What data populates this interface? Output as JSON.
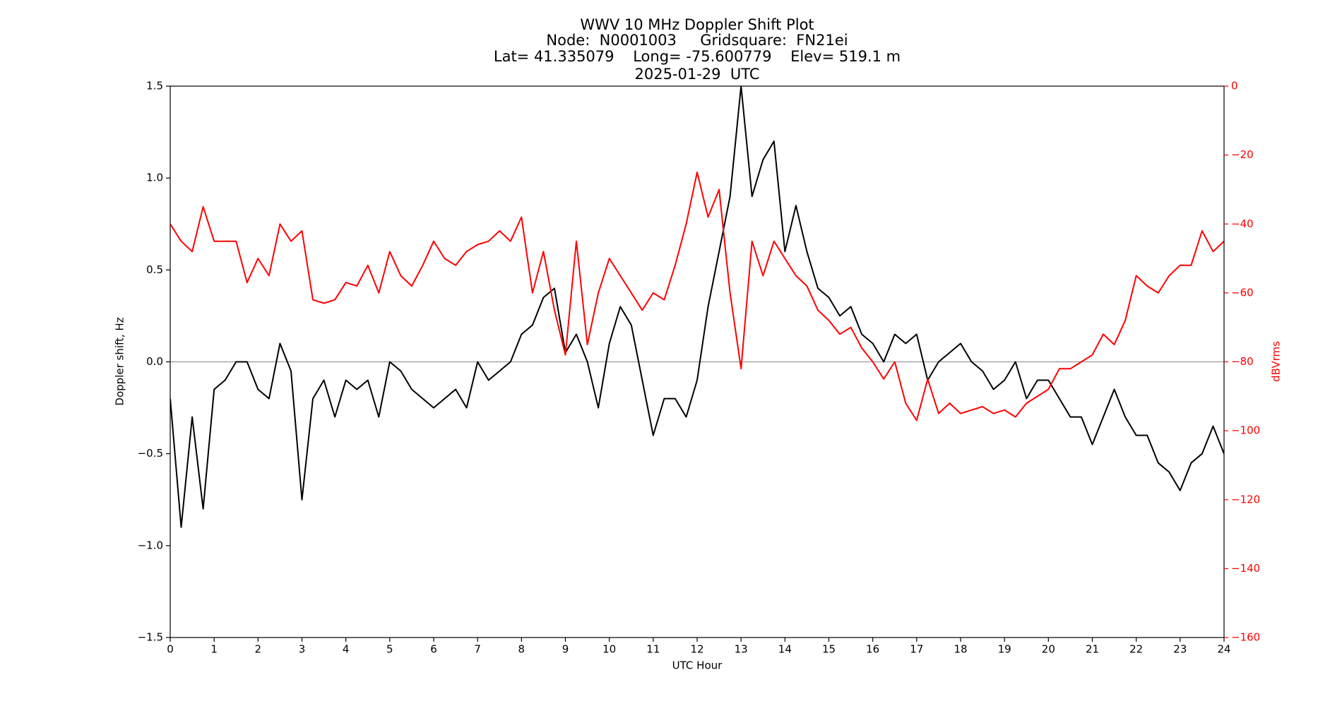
{
  "chart_data": {
    "type": "line",
    "title": [
      "WWV 10 MHz Doppler Shift Plot",
      "Node:  N0001003     Gridsquare:  FN21ei",
      "Lat= 41.335079    Long= -75.600779    Elev= 519.1 m",
      "2025-01-29  UTC"
    ],
    "x_label": "UTC Hour",
    "y_label": "Doppler shift, Hz",
    "y2_label": "dBVrms",
    "y2_color": "#ff0000",
    "x": [
      0,
      0.25,
      0.5,
      0.75,
      1,
      1.25,
      1.5,
      1.75,
      2,
      2.25,
      2.5,
      2.75,
      3,
      3.25,
      3.5,
      3.75,
      4,
      4.25,
      4.5,
      4.75,
      5,
      5.25,
      5.5,
      5.75,
      6,
      6.25,
      6.5,
      6.75,
      7,
      7.25,
      7.5,
      7.75,
      8,
      8.25,
      8.5,
      8.75,
      9,
      9.25,
      9.5,
      9.75,
      10,
      10.25,
      10.5,
      10.75,
      11,
      11.25,
      11.5,
      11.75,
      12,
      12.25,
      12.5,
      12.75,
      13,
      13.25,
      13.5,
      13.75,
      14,
      14.25,
      14.5,
      14.75,
      15,
      15.25,
      15.5,
      15.75,
      16,
      16.25,
      16.5,
      16.75,
      17,
      17.25,
      17.5,
      17.75,
      18,
      18.25,
      18.5,
      18.75,
      19,
      19.25,
      19.5,
      19.75,
      20,
      20.25,
      20.5,
      20.75,
      21,
      21.25,
      21.5,
      21.75,
      22,
      22.25,
      22.5,
      22.75,
      23,
      23.25,
      23.5,
      23.75,
      24
    ],
    "series": [
      {
        "name": "Doppler shift",
        "color": "#000000",
        "values": [
          -0.2,
          -0.9,
          -0.3,
          -0.8,
          -0.15,
          -0.1,
          0.0,
          0.0,
          -0.15,
          -0.2,
          0.1,
          -0.05,
          -0.75,
          -0.2,
          -0.1,
          -0.3,
          -0.1,
          -0.15,
          -0.1,
          -0.3,
          0.0,
          -0.05,
          -0.15,
          -0.2,
          -0.25,
          -0.2,
          -0.15,
          -0.25,
          0.0,
          -0.1,
          -0.05,
          0.0,
          0.15,
          0.2,
          0.35,
          0.4,
          0.05,
          0.15,
          0.0,
          -0.25,
          0.1,
          0.3,
          0.2,
          -0.1,
          -0.4,
          -0.2,
          -0.2,
          -0.3,
          -0.1,
          0.3,
          0.6,
          0.9,
          1.5,
          0.9,
          1.1,
          1.2,
          0.6,
          0.85,
          0.6,
          0.4,
          0.35,
          0.25,
          0.3,
          0.15,
          0.1,
          0.0,
          0.15,
          0.1,
          0.15,
          -0.1,
          0.0,
          0.05,
          0.1,
          0.0,
          -0.05,
          -0.15,
          -0.1,
          0.0,
          -0.2,
          -0.1,
          -0.1,
          -0.2,
          -0.3,
          -0.3,
          -0.45,
          -0.3,
          -0.15,
          -0.3,
          -0.4,
          -0.4,
          -0.55,
          -0.6,
          -0.7,
          -0.55,
          -0.5,
          -0.35,
          -0.5
        ]
      },
      {
        "name": "dBVrms",
        "color": "#ff0000",
        "axis": "y2",
        "values": [
          -40,
          -45,
          -48,
          -35,
          -45,
          -45,
          -45,
          -57,
          -50,
          -55,
          -40,
          -45,
          -42,
          -62,
          -63,
          -62,
          -57,
          -58,
          -52,
          -60,
          -48,
          -55,
          -58,
          -52,
          -45,
          -50,
          -52,
          -48,
          -46,
          -45,
          -42,
          -45,
          -38,
          -60,
          -48,
          -65,
          -78,
          -45,
          -75,
          -60,
          -50,
          -55,
          -60,
          -65,
          -60,
          -62,
          -52,
          -40,
          -25,
          -38,
          -30,
          -60,
          -82,
          -45,
          -55,
          -45,
          -50,
          -55,
          -58,
          -65,
          -68,
          -72,
          -70,
          -76,
          -80,
          -85,
          -80,
          -92,
          -97,
          -85,
          -95,
          -92,
          -95,
          -94,
          -93,
          -95,
          -94,
          -96,
          -92,
          -90,
          -88,
          -82,
          -82,
          -80,
          -78,
          -72,
          -75,
          -68,
          -55,
          -58,
          -60,
          -55,
          -52,
          -52,
          -42,
          -48,
          -45
        ]
      }
    ],
    "hline": {
      "value": 0,
      "color": "#999999"
    },
    "xlim": [
      0,
      24
    ],
    "xticks": [
      0,
      1,
      2,
      3,
      4,
      5,
      6,
      7,
      8,
      9,
      10,
      11,
      12,
      13,
      14,
      15,
      16,
      17,
      18,
      19,
      20,
      21,
      22,
      23,
      24
    ],
    "ylim": [
      -1.5,
      1.5
    ],
    "yticks": [
      {
        "value": -1.5,
        "label": "−1.5"
      },
      {
        "value": -1.0,
        "label": "−1.0"
      },
      {
        "value": -0.5,
        "label": "−0.5"
      },
      {
        "value": 0,
        "label": "0.0"
      },
      {
        "value": 0.5,
        "label": "0.5"
      },
      {
        "value": 1.0,
        "label": "1.0"
      },
      {
        "value": 1.5,
        "label": "1.5"
      }
    ],
    "y2lim": [
      -160,
      0
    ],
    "y2ticks": [
      {
        "value": -160,
        "label": "−160"
      },
      {
        "value": -140,
        "label": "−140"
      },
      {
        "value": -120,
        "label": "−120"
      },
      {
        "value": -100,
        "label": "−100"
      },
      {
        "value": -80,
        "label": "−80"
      },
      {
        "value": -60,
        "label": "−60"
      },
      {
        "value": -40,
        "label": "−40"
      },
      {
        "value": -20,
        "label": "−20"
      },
      0
    ]
  }
}
